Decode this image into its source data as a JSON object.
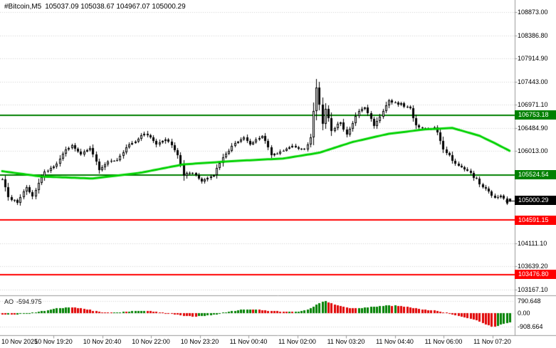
{
  "header": {
    "symbol_timeframe": "#Bitcoin,M5",
    "ohlc_readout": "105037.09 105038.67 104967.07 105000.29"
  },
  "indicator": {
    "name": "AO",
    "value": "-594.975"
  },
  "chart_data": {
    "type": "candlestick",
    "symbol": "#Bitcoin",
    "timeframe": "M5",
    "bars_visible": 169,
    "noise_seed": 20251111,
    "last_bar": {
      "open": 105037.09,
      "high": 105038.67,
      "low": 104967.07,
      "close": 105000.29
    },
    "price_axis": {
      "ylim": [
        103046,
        109122
      ],
      "ticks": [
        {
          "label": "108873.00",
          "price": 108873.0
        },
        {
          "label": "108386.80",
          "price": 108386.8
        },
        {
          "label": "107914.90",
          "price": 107914.9
        },
        {
          "label": "107443.00",
          "price": 107443.0
        },
        {
          "label": "106971.10",
          "price": 106971.1
        },
        {
          "label": "106484.90",
          "price": 106484.9
        },
        {
          "label": "106013.00",
          "price": 106013.0
        },
        {
          "label": "104111.10",
          "price": 104111.1
        },
        {
          "label": "103639.20",
          "price": 103639.2
        },
        {
          "label": "103167.10",
          "price": 103167.1
        }
      ]
    },
    "levels": [
      {
        "label": "106753.18",
        "price": 106753.18,
        "role": "resistance",
        "color": "#008000"
      },
      {
        "label": "105524.54",
        "price": 105524.54,
        "role": "resistance",
        "color": "#008000"
      },
      {
        "label": "105000.29",
        "price": 105000.29,
        "role": "current-price",
        "color": "#000000"
      },
      {
        "label": "104591.15",
        "price": 104591.15,
        "role": "support",
        "color": "#ff0000"
      },
      {
        "label": "103476.80",
        "price": 103476.8,
        "role": "support",
        "color": "#ff0000"
      }
    ],
    "price_path_keypoints": [
      [
        0,
        105450
      ],
      [
        2,
        105050
      ],
      [
        5,
        104950
      ],
      [
        8,
        105250
      ],
      [
        10,
        105080
      ],
      [
        14,
        105600
      ],
      [
        17,
        105680
      ],
      [
        21,
        106050
      ],
      [
        23,
        106150
      ],
      [
        26,
        105950
      ],
      [
        29,
        106100
      ],
      [
        32,
        105650
      ],
      [
        35,
        105780
      ],
      [
        38,
        105820
      ],
      [
        42,
        106150
      ],
      [
        45,
        106280
      ],
      [
        47,
        106400
      ],
      [
        51,
        106150
      ],
      [
        54,
        106280
      ],
      [
        58,
        105950
      ],
      [
        60,
        105520
      ],
      [
        63,
        105560
      ],
      [
        66,
        105380
      ],
      [
        70,
        105520
      ],
      [
        73,
        105900
      ],
      [
        77,
        106180
      ],
      [
        80,
        106300
      ],
      [
        82,
        106180
      ],
      [
        86,
        106340
      ],
      [
        89,
        105950
      ],
      [
        93,
        106020
      ],
      [
        96,
        106120
      ],
      [
        100,
        106050
      ],
      [
        102,
        106280
      ],
      [
        104,
        107330
      ],
      [
        106,
        106600
      ],
      [
        107,
        106900
      ],
      [
        109,
        106450
      ],
      [
        112,
        106620
      ],
      [
        114,
        106330
      ],
      [
        118,
        106850
      ],
      [
        120,
        106930
      ],
      [
        123,
        106550
      ],
      [
        126,
        106850
      ],
      [
        128,
        107050
      ],
      [
        132,
        106980
      ],
      [
        135,
        106880
      ],
      [
        137,
        106550
      ],
      [
        140,
        106450
      ],
      [
        143,
        106520
      ],
      [
        146,
        106080
      ],
      [
        149,
        105820
      ],
      [
        152,
        105660
      ],
      [
        155,
        105560
      ],
      [
        158,
        105350
      ],
      [
        161,
        105180
      ],
      [
        163,
        105060
      ],
      [
        165,
        105120
      ],
      [
        167,
        104960
      ],
      [
        168,
        105000.29
      ]
    ],
    "ma_keypoints": [
      [
        0,
        105600
      ],
      [
        13,
        105490
      ],
      [
        30,
        105450
      ],
      [
        46,
        105570
      ],
      [
        60,
        105740
      ],
      [
        77,
        105810
      ],
      [
        93,
        105860
      ],
      [
        105,
        105980
      ],
      [
        116,
        106200
      ],
      [
        128,
        106370
      ],
      [
        140,
        106460
      ],
      [
        149,
        106490
      ],
      [
        158,
        106330
      ],
      [
        163,
        106180
      ],
      [
        168,
        106020
      ]
    ],
    "time_axis": {
      "ticks": [
        "10 Nov 2025",
        "10 Nov 19:20",
        "10 Nov 20:40",
        "10 Nov 22:00",
        "10 Nov 23:20",
        "11 Nov 00:40",
        "11 Nov 02:00",
        "11 Nov 03:20",
        "11 Nov 04:40",
        "11 Nov 06:00",
        "11 Nov 07:20"
      ]
    },
    "ao": {
      "ylim": [
        -1456,
        1068
      ],
      "current_value": -594.975,
      "scale_ticks": [
        {
          "label": "790.648",
          "value": 790.648
        },
        {
          "label": "0.00",
          "value": 0
        },
        {
          "label": "-908.664",
          "value": -908.664
        }
      ],
      "keypoints": [
        [
          0,
          -80
        ],
        [
          4,
          -130
        ],
        [
          9,
          0
        ],
        [
          14,
          150
        ],
        [
          18,
          300
        ],
        [
          22,
          380
        ],
        [
          25,
          340
        ],
        [
          29,
          200
        ],
        [
          32,
          80
        ],
        [
          36,
          20
        ],
        [
          39,
          60
        ],
        [
          43,
          120
        ],
        [
          46,
          150
        ],
        [
          50,
          110
        ],
        [
          53,
          30
        ],
        [
          57,
          -70
        ],
        [
          60,
          -180
        ],
        [
          64,
          -230
        ],
        [
          67,
          -180
        ],
        [
          71,
          -80
        ],
        [
          74,
          60
        ],
        [
          78,
          180
        ],
        [
          81,
          240
        ],
        [
          85,
          210
        ],
        [
          89,
          150
        ],
        [
          92,
          100
        ],
        [
          95,
          90
        ],
        [
          99,
          130
        ],
        [
          102,
          300
        ],
        [
          105,
          680
        ],
        [
          107,
          790.648
        ],
        [
          108,
          700
        ],
        [
          111,
          500
        ],
        [
          114,
          360
        ],
        [
          117,
          300
        ],
        [
          120,
          360
        ],
        [
          123,
          420
        ],
        [
          126,
          470
        ],
        [
          128,
          500
        ],
        [
          132,
          460
        ],
        [
          135,
          380
        ],
        [
          137,
          290
        ],
        [
          140,
          210
        ],
        [
          143,
          160
        ],
        [
          146,
          60
        ],
        [
          149,
          -90
        ],
        [
          152,
          -230
        ],
        [
          155,
          -390
        ],
        [
          158,
          -560
        ],
        [
          160,
          -730
        ],
        [
          162,
          -880
        ],
        [
          163,
          -908.664
        ],
        [
          165,
          -780
        ],
        [
          167,
          -660
        ],
        [
          168,
          -594.975
        ]
      ]
    },
    "colors": {
      "background": "#ffffff",
      "grid": "#d4d4d4",
      "separator": "#9a9a9a",
      "candle_outline": "#000000",
      "bull_body": "#ffffff",
      "bear_body": "#000000",
      "ma_line": "#00d200",
      "resistance_line": "#008000",
      "support_line": "#ff0000",
      "current_price_label": "#000000",
      "ao_up": "#008000",
      "ao_down": "#e00000",
      "axis_text": "#000000"
    }
  }
}
